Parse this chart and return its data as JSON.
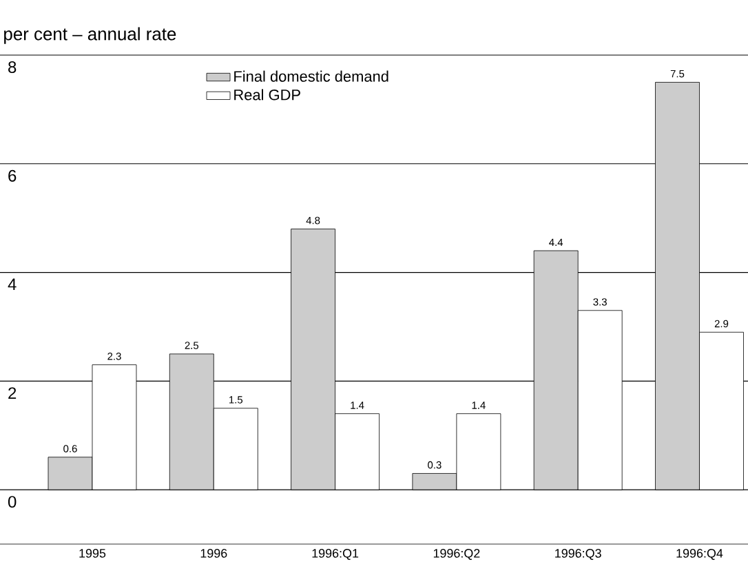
{
  "chart_data": {
    "type": "bar",
    "title": "per cent – annual rate",
    "categories": [
      "1995",
      "1996",
      "1996:Q1",
      "1996:Q2",
      "1996:Q3",
      "1996:Q4"
    ],
    "series": [
      {
        "name": "Final domestic demand",
        "color": "#cccccc",
        "values": [
          0.6,
          2.5,
          4.8,
          0.3,
          4.4,
          7.5
        ]
      },
      {
        "name": "Real GDP",
        "color": "#ffffff",
        "values": [
          2.3,
          1.5,
          1.4,
          1.4,
          3.3,
          2.9
        ]
      }
    ],
    "ylim": [
      -1,
      8
    ],
    "yticks": [
      0,
      2,
      4,
      6,
      8
    ],
    "grid": "y",
    "legend": "top",
    "data_labels": true
  }
}
